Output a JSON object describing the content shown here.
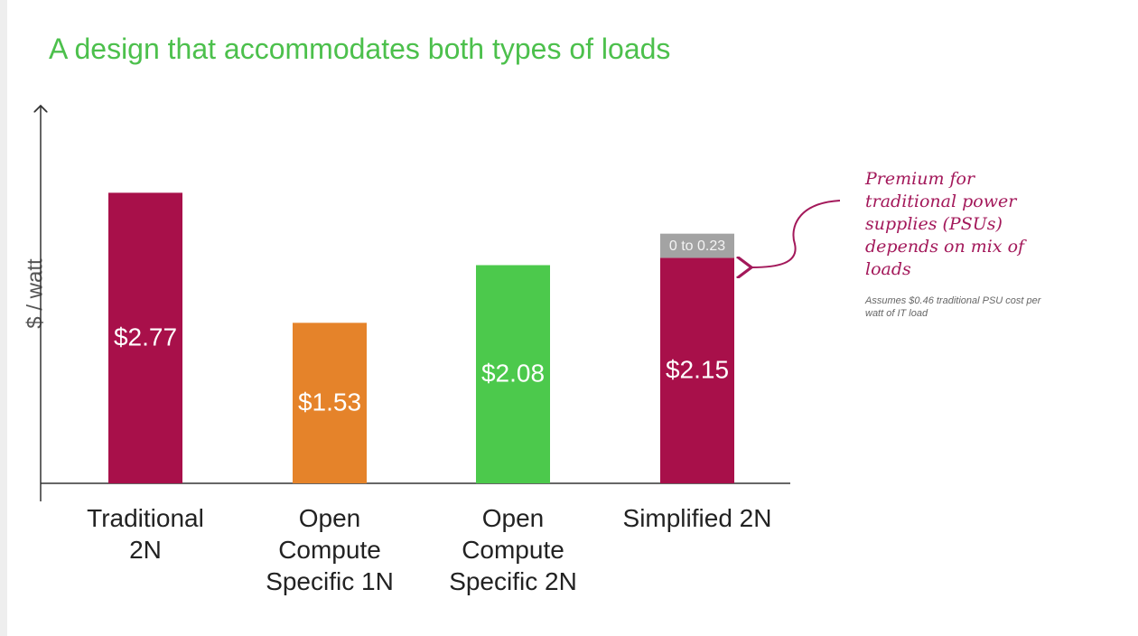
{
  "chart_data": {
    "type": "stacked_bar",
    "title": "A design that accommodates both types of loads",
    "y_label": "$ / watt",
    "categories": [
      "Traditional 2N",
      "Open Compute Specific 1N",
      "Open Compute Specific 2N",
      "Simplified 2N"
    ],
    "series": [
      {
        "colors": [
          "#a8104a",
          "#e5832a",
          "#4cc94c",
          "#a8104a"
        ],
        "values": [
          2.77,
          1.53,
          2.08,
          2.15
        ],
        "value_labels": [
          "$2.77",
          "$1.53",
          "$2.08",
          "$2.15"
        ]
      },
      {
        "color": "#a3a3a3",
        "values": [
          null,
          null,
          null,
          0.23
        ],
        "value_labels": [
          null,
          null,
          null,
          "0 to 0.23"
        ]
      }
    ],
    "ylim": [
      0,
      3.6
    ],
    "annotation": "Premium for traditional power supplies (PSUs) depends on mix of loads",
    "note": "Assumes $0.46 traditional PSU cost per watt of IT load"
  }
}
